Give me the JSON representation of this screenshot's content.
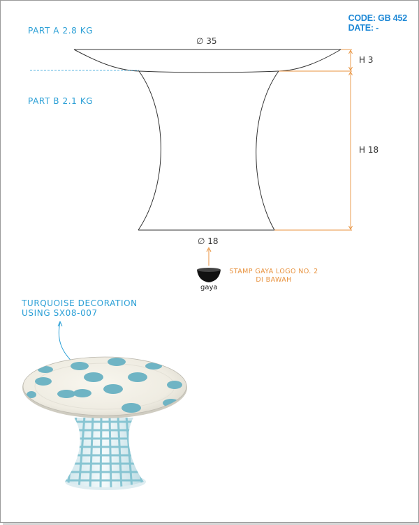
{
  "header": {
    "code": "CODE: GB 452",
    "date": "DATE: -"
  },
  "parts": {
    "part_a": "PART A 2.8 KG",
    "part_b": "PART B 2.1 KG"
  },
  "dimensions": {
    "top_diameter": "∅ 35",
    "bottom_diameter": "∅ 18",
    "height_plate": "H 3",
    "height_base": "H 18"
  },
  "stamp": {
    "logo_text": "gaya",
    "note_line1": "STAMP GAYA LOGO NO. 2",
    "note_line2": "DI BAWAH"
  },
  "decoration": {
    "line1": "TURQUOISE DECORATION",
    "line2": "USING SX08-007"
  },
  "colors": {
    "label_blue": "#2a9fd6",
    "code_blue": "#1e88d6",
    "dimension_orange": "#e8923e",
    "turquoise": "#6fb4c4"
  }
}
